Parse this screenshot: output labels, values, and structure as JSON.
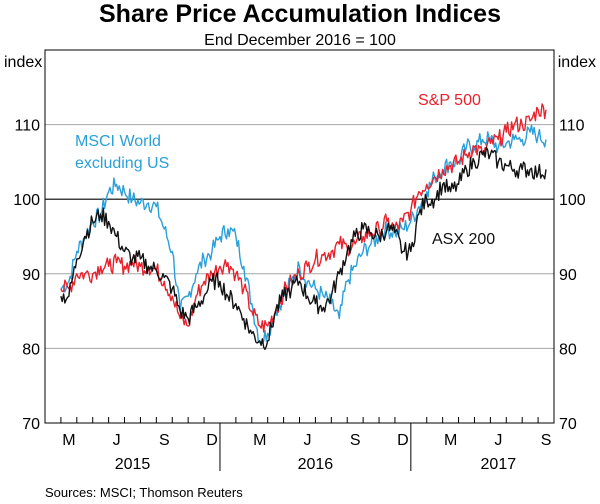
{
  "chart_data": {
    "type": "line",
    "title": "Share Price Accumulation Indices",
    "subtitle": "End December 2016 = 100",
    "ylabel_left": "index",
    "ylabel_right": "index",
    "ylim": [
      70,
      120
    ],
    "yticks": [
      70,
      80,
      90,
      100,
      110
    ],
    "reference_line": 100,
    "x_month_labels": [
      "M",
      "J",
      "S",
      "D",
      "M",
      "J",
      "S",
      "D",
      "M",
      "J",
      "S"
    ],
    "x_year_labels": [
      "2015",
      "2016",
      "2017"
    ],
    "x_range_months": [
      "2015-02",
      "2017-09"
    ],
    "series": [
      {
        "name": "MSCI World excluding US",
        "label_lines": [
          "MSCI World",
          "excluding US"
        ],
        "color": "#2a9fd8",
        "x": [
          1,
          1.5,
          2,
          2.5,
          3,
          3.5,
          4,
          4.5,
          5,
          5.5,
          6,
          6.5,
          7,
          7.5,
          8,
          8.5,
          9,
          9.5,
          10,
          10.5,
          11,
          11.5,
          12,
          12.5,
          13,
          13.5,
          14,
          14.5,
          15,
          15.5,
          16,
          16.5,
          17,
          17.5,
          18,
          18.5,
          19,
          19.5,
          20,
          20.5,
          21,
          21.5,
          22,
          22.5,
          23,
          23.5,
          24,
          24.5,
          25,
          25.5,
          26,
          26.5,
          27,
          27.5,
          28,
          28.5,
          29,
          29.5,
          30,
          30.5,
          31,
          31.5
        ],
        "values": [
          88,
          89,
          93,
          95,
          97,
          98,
          101,
          102,
          101,
          100,
          99.5,
          99.5,
          99,
          96,
          93,
          85,
          87,
          90,
          92,
          93,
          95,
          96,
          95,
          91,
          86,
          81,
          82,
          85,
          87,
          89,
          91,
          89,
          88,
          87,
          86,
          84,
          89,
          91,
          93,
          94,
          95,
          96,
          95.5,
          96,
          97,
          99,
          101,
          103,
          104,
          105,
          105,
          107,
          107,
          108,
          108,
          107,
          107.5,
          108,
          108,
          109,
          108.5,
          108
        ]
      },
      {
        "name": "S&P 500",
        "label_lines": [
          "S&P 500"
        ],
        "color": "#e8212c",
        "x": [
          1,
          1.5,
          2,
          2.5,
          3,
          3.5,
          4,
          4.5,
          5,
          5.5,
          6,
          6.5,
          7,
          7.5,
          8,
          8.5,
          9,
          9.5,
          10,
          10.5,
          11,
          11.5,
          12,
          12.5,
          13,
          13.5,
          14,
          14.5,
          15,
          15.5,
          16,
          16.5,
          17,
          17.5,
          18,
          18.5,
          19,
          19.5,
          20,
          20.5,
          21,
          21.5,
          22,
          22.5,
          23,
          23.5,
          24,
          24.5,
          25,
          25.5,
          26,
          26.5,
          27,
          27.5,
          28,
          28.5,
          29,
          29.5,
          30,
          30.5,
          31,
          31.5
        ],
        "values": [
          88,
          88,
          90,
          90,
          90,
          91,
          91,
          91.5,
          91,
          91.5,
          91,
          91,
          90.5,
          89,
          87,
          84,
          83,
          87,
          89,
          90,
          91,
          91.5,
          90,
          88,
          85,
          83,
          83,
          85,
          87.5,
          89,
          90,
          91,
          92,
          92.5,
          93,
          94,
          93.5,
          94,
          95,
          95.5,
          96,
          97,
          96,
          97,
          98.5,
          101,
          102,
          103,
          104,
          104.5,
          105,
          106,
          107,
          106,
          107.5,
          108,
          109,
          110,
          110,
          110.5,
          112,
          112
        ]
      },
      {
        "name": "ASX 200",
        "label_lines": [
          "ASX 200"
        ],
        "color": "#111111",
        "x": [
          1,
          1.5,
          2,
          2.5,
          3,
          3.5,
          4,
          4.5,
          5,
          5.5,
          6,
          6.5,
          7,
          7.5,
          8,
          8.5,
          9,
          9.5,
          10,
          10.5,
          11,
          11.5,
          12,
          12.5,
          13,
          13.5,
          14,
          14.5,
          15,
          15.5,
          16,
          16.5,
          17,
          17.5,
          18,
          18.5,
          19,
          19.5,
          20,
          20.5,
          21,
          21.5,
          22,
          22.5,
          23,
          23.5,
          24,
          24.5,
          25,
          25.5,
          26,
          26.5,
          27,
          27.5,
          28,
          28.5,
          29,
          29.5,
          30,
          30.5,
          31,
          31.5
        ],
        "values": [
          87,
          87,
          92,
          95,
          97,
          98,
          97,
          95,
          93,
          92,
          92,
          91,
          90.5,
          89.5,
          88,
          85,
          84,
          85.5,
          87,
          89,
          89,
          87,
          86,
          84,
          82,
          81,
          81,
          85,
          87,
          88,
          89,
          87,
          86,
          85.5,
          87,
          90,
          93,
          95,
          96,
          95.5,
          95,
          96,
          95.5,
          93,
          93,
          98,
          100,
          100,
          102,
          101,
          102,
          104,
          105,
          106,
          106,
          105,
          104.5,
          104,
          104,
          104,
          103.5,
          104
        ]
      }
    ],
    "source": "Sources: MSCI; Thomson Reuters"
  }
}
